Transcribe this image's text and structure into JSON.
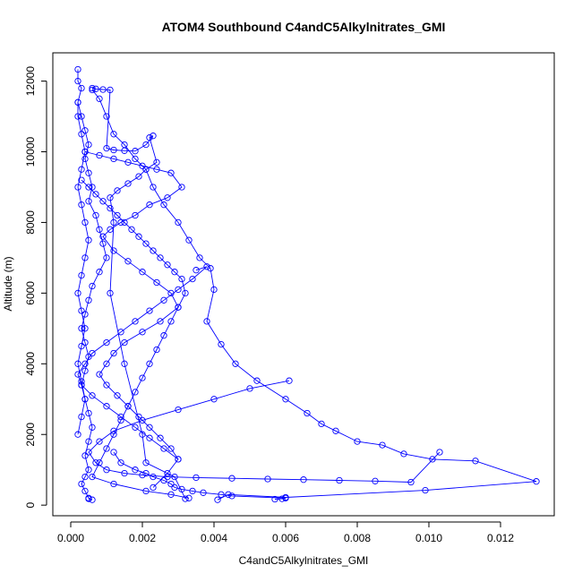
{
  "chart_data": {
    "type": "scatter",
    "title": "ATOM4 Southbound C4andC5Alkylnitrates_GMI",
    "xlabel": "C4andC5Alkylnitrates_GMI",
    "ylabel": "Altitude (m)",
    "xlim": [
      -0.0005,
      0.0135
    ],
    "ylim": [
      -300,
      12800
    ],
    "x_ticks": [
      0.0,
      0.002,
      0.004,
      0.006,
      0.008,
      0.01,
      0.012
    ],
    "x_tick_labels": [
      "0.000",
      "0.002",
      "0.004",
      "0.006",
      "0.008",
      "0.010",
      "0.012"
    ],
    "y_ticks": [
      0,
      2000,
      4000,
      6000,
      8000,
      10000,
      12000
    ],
    "y_tick_labels": [
      "0",
      "2000",
      "4000",
      "6000",
      "8000",
      "10000",
      "12000"
    ],
    "marker": "open-circle",
    "line": true,
    "color": "#0000ff",
    "grid": false,
    "series": [
      {
        "x": [
          0.0002,
          0.0002,
          0.0003,
          0.0002,
          0.0003,
          0.0004,
          0.0005,
          0.0004,
          0.0005,
          0.0006,
          0.0005,
          0.0007,
          0.0008,
          0.0009,
          0.001,
          0.0008,
          0.0006,
          0.0005,
          0.0004,
          0.0003,
          0.0004,
          0.0005,
          0.0004,
          0.0003,
          0.0004,
          0.0005,
          0.0006,
          0.0005,
          0.0004,
          0.0005,
          0.0004,
          0.0003,
          0.0004,
          0.0005,
          0.0006,
          0.0005
        ],
        "y": [
          12330,
          12000,
          11800,
          11400,
          11000,
          10600,
          10200,
          9800,
          9400,
          9000,
          8600,
          8200,
          7800,
          7400,
          7000,
          6600,
          6200,
          5800,
          5400,
          5000,
          4600,
          4200,
          3800,
          3400,
          3000,
          2600,
          2200,
          1800,
          1400,
          1000,
          800,
          600,
          400,
          200,
          150,
          180
        ]
      },
      {
        "x": [
          0.0006,
          0.0008,
          0.001,
          0.0012,
          0.0015,
          0.0018,
          0.0021,
          0.0023,
          0.0026,
          0.003,
          0.0033,
          0.0036,
          0.0039,
          0.004,
          0.0038,
          0.0042,
          0.0046,
          0.0052,
          0.006,
          0.0066,
          0.007,
          0.0074,
          0.008,
          0.0087,
          0.0093,
          0.0101,
          0.0113,
          0.013,
          0.0099,
          0.006,
          0.0044,
          0.0041
        ],
        "y": [
          11750,
          11500,
          11000,
          10500,
          10200,
          9800,
          9500,
          9000,
          8500,
          8000,
          7500,
          7000,
          6700,
          6100,
          5200,
          4550,
          4000,
          3520,
          3000,
          2600,
          2300,
          2100,
          1800,
          1700,
          1450,
          1300,
          1250,
          670,
          420,
          220,
          300,
          150
        ]
      },
      {
        "x": [
          0.0004,
          0.0008,
          0.0012,
          0.0016,
          0.002,
          0.0024,
          0.0028,
          0.0031,
          0.0027,
          0.0022,
          0.0018,
          0.0014,
          0.0011,
          0.0009,
          0.0012,
          0.0016,
          0.002,
          0.0024,
          0.0028,
          0.003,
          0.0025,
          0.002,
          0.0015,
          0.0012,
          0.001,
          0.0008,
          0.001,
          0.0013,
          0.0016,
          0.0019,
          0.0022,
          0.0025,
          0.0028,
          0.003,
          0.0027,
          0.0023
        ],
        "y": [
          10000,
          9900,
          9800,
          9700,
          9600,
          9500,
          9400,
          9000,
          8700,
          8500,
          8200,
          8000,
          7800,
          7600,
          7200,
          6900,
          6600,
          6300,
          6000,
          5600,
          5200,
          4900,
          4600,
          4300,
          4000,
          3700,
          3400,
          3100,
          2800,
          2500,
          2200,
          1900,
          1600,
          1300,
          900,
          500
        ]
      },
      {
        "x": [
          0.0003,
          0.0005,
          0.0007,
          0.0009,
          0.0011,
          0.0013,
          0.0015,
          0.0017,
          0.0019,
          0.0021,
          0.0023,
          0.0025,
          0.0027,
          0.0029,
          0.0031,
          0.0032,
          0.003,
          0.0028,
          0.0026,
          0.0024,
          0.0022,
          0.002,
          0.0018,
          0.0016,
          0.0014,
          0.0012,
          0.001,
          0.0008,
          0.0006,
          0.0012,
          0.0021,
          0.0028,
          0.0033
        ],
        "y": [
          9200,
          9000,
          8800,
          8600,
          8400,
          8200,
          8000,
          7800,
          7600,
          7400,
          7200,
          7000,
          6800,
          6600,
          6400,
          6000,
          5600,
          5200,
          4800,
          4400,
          4000,
          3600,
          3200,
          2800,
          2400,
          2000,
          1600,
          1200,
          800,
          600,
          400,
          300,
          200
        ]
      },
      {
        "x": [
          0.0035,
          0.0038,
          0.0034,
          0.003,
          0.0026,
          0.0022,
          0.0018,
          0.0014,
          0.001,
          0.0006,
          0.0004,
          0.0002,
          0.0003,
          0.0006,
          0.001,
          0.0014,
          0.0018,
          0.0022,
          0.0026,
          0.003
        ],
        "y": [
          6650,
          6750,
          6400,
          6100,
          5800,
          5500,
          5200,
          4900,
          4600,
          4300,
          4000,
          3700,
          3400,
          3100,
          2800,
          2500,
          2200,
          1900,
          1600,
          1300
        ]
      },
      {
        "x": [
          0.0061,
          0.005,
          0.004,
          0.003,
          0.002,
          0.0012,
          0.0008,
          0.0005,
          0.0007,
          0.001,
          0.0015,
          0.002,
          0.0027,
          0.0035,
          0.0045,
          0.0055,
          0.0065,
          0.0075,
          0.0085,
          0.0095,
          0.0103
        ],
        "y": [
          3520,
          3300,
          3000,
          2700,
          2400,
          2100,
          1800,
          1500,
          1200,
          1000,
          900,
          850,
          800,
          780,
          760,
          740,
          720,
          700,
          680,
          650,
          1500
        ]
      },
      {
        "x": [
          0.0002,
          0.0002,
          0.0003,
          0.0004,
          0.0003,
          0.0002,
          0.0003,
          0.0004,
          0.0005,
          0.0004,
          0.0003,
          0.0002,
          0.0003,
          0.0004,
          0.0003,
          0.0002,
          0.0003,
          0.0004,
          0.0003,
          0.0002
        ],
        "y": [
          11400,
          11000,
          10500,
          10000,
          9500,
          9000,
          8500,
          8000,
          7500,
          7000,
          6500,
          6000,
          5500,
          5000,
          4500,
          4000,
          3500,
          3000,
          2500,
          2000
        ]
      },
      {
        "x": [
          0.0006,
          0.0007,
          0.0009,
          0.0011,
          0.001,
          0.0012,
          0.0015,
          0.0018,
          0.0021,
          0.0023,
          0.0022,
          0.0024,
          0.0021,
          0.0019,
          0.0016,
          0.0013,
          0.0011,
          0.0012,
          0.0011,
          0.0015,
          0.002,
          0.0021,
          0.0029,
          0.0032
        ],
        "y": [
          11800,
          11780,
          11760,
          11750,
          10100,
          10050,
          10030,
          10020,
          10200,
          10450,
          10400,
          9700,
          9500,
          9300,
          9100,
          8900,
          8700,
          8000,
          6000,
          4000,
          2000,
          1200,
          800,
          180
        ]
      },
      {
        "x": [
          0.0057,
          0.0059,
          0.006,
          0.0045,
          0.0042,
          0.0037,
          0.0034,
          0.0031,
          0.0029,
          0.0028,
          0.0026,
          0.0023,
          0.0021,
          0.0018,
          0.0014,
          0.0012
        ],
        "y": [
          170,
          180,
          200,
          260,
          300,
          350,
          400,
          450,
          500,
          600,
          700,
          800,
          900,
          1000,
          1200,
          1500
        ]
      }
    ]
  }
}
